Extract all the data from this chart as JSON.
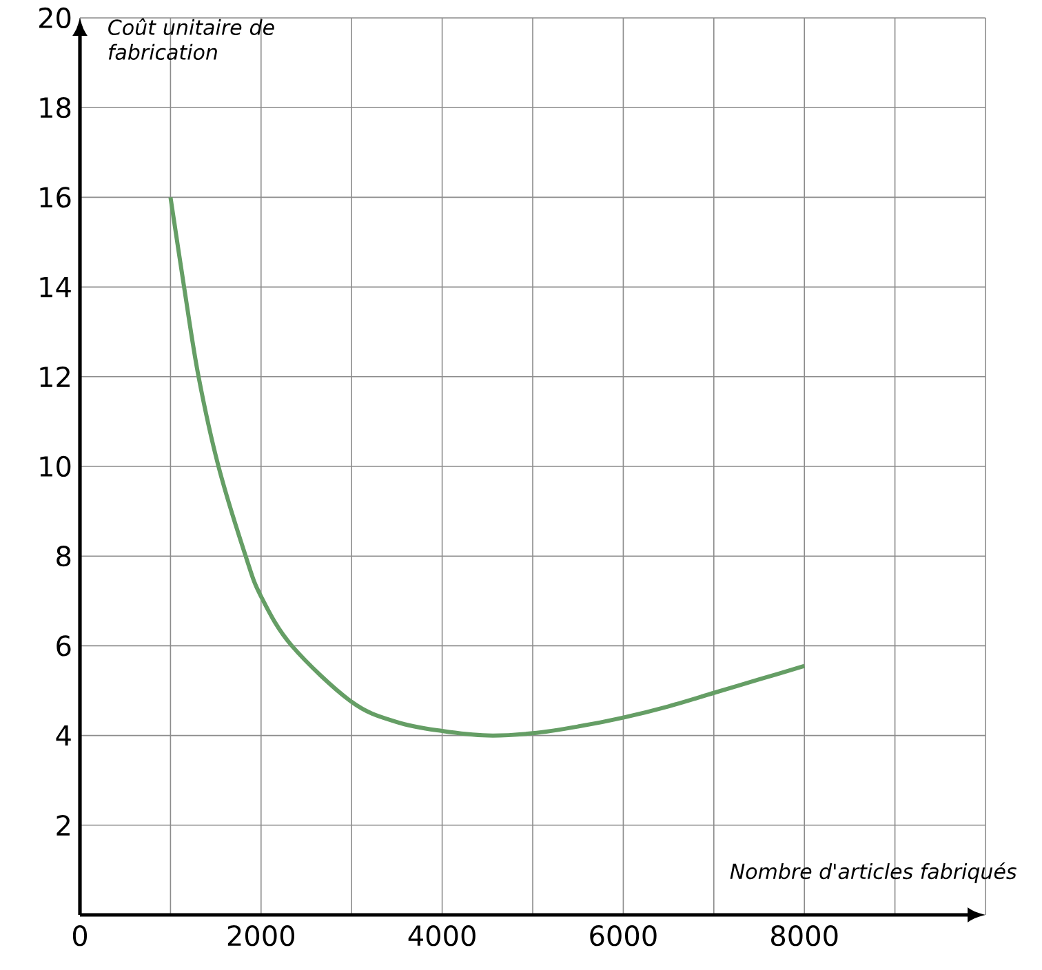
{
  "chart_data": {
    "type": "line",
    "xlabel": "Nombre d'articles fabriqués",
    "ylabel": "Coût unitaire de fabrication",
    "x": [
      1000,
      1150,
      1310,
      1530,
      1830,
      2000,
      2340,
      3000,
      3500,
      4000,
      4500,
      5000,
      5500,
      6000,
      6500,
      7000,
      7500,
      8000
    ],
    "series": [
      {
        "color": "#659e65",
        "values": [
          16,
          14,
          12,
          10,
          8,
          7.1,
          6,
          4.75,
          4.3,
          4.1,
          4.0,
          4.05,
          4.2,
          4.4,
          4.65,
          4.95,
          5.25,
          5.55
        ]
      }
    ],
    "xlim": [
      0,
      10000
    ],
    "ylim": [
      0,
      20
    ],
    "xticks": [
      0,
      {
        "value": 1000,
        "label": null
      },
      2000,
      {
        "value": 3000,
        "label": null
      },
      4000,
      {
        "value": 5000,
        "label": null
      },
      6000,
      {
        "value": 7000,
        "label": null
      },
      8000,
      {
        "value": 9000,
        "label": null
      },
      {
        "value": 10000,
        "label": null
      }
    ],
    "yticks": [
      2,
      4,
      6,
      8,
      10,
      12,
      14,
      16,
      18,
      20
    ],
    "grid": true,
    "marker": "none",
    "line_style": "solid"
  }
}
